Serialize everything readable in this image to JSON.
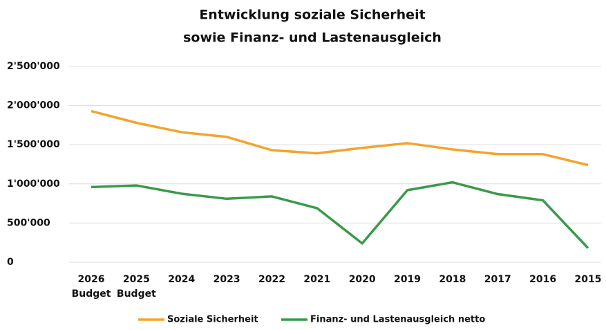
{
  "chart_data": {
    "type": "line",
    "title": [
      "Entwicklung soziale Sicherheit",
      "sowie Finanz- und Lastenausgleich"
    ],
    "categories": [
      "2026 Budget",
      "2025 Budget",
      "2024",
      "2023",
      "2022",
      "2021",
      "2020",
      "2019",
      "2018",
      "2017",
      "2016",
      "2015"
    ],
    "series": [
      {
        "name": "Soziale Sicherheit",
        "color": "#f2a52b",
        "values": [
          1930000,
          1780000,
          1660000,
          1600000,
          1430000,
          1390000,
          1460000,
          1520000,
          1440000,
          1380000,
          1380000,
          1240000
        ]
      },
      {
        "name": "Finanz- und Lastenausgleich netto",
        "color": "#3a9a48",
        "values": [
          960000,
          980000,
          875000,
          810000,
          840000,
          690000,
          240000,
          920000,
          1020000,
          870000,
          790000,
          180000
        ]
      }
    ],
    "ylim": [
      0,
      2500000
    ],
    "yticks": [
      0,
      {
        "value": 500000,
        "label": "500'000"
      },
      {
        "value": 1000000,
        "label": "1'000'000"
      },
      {
        "value": 1500000,
        "label": "1'500'000"
      },
      {
        "value": 2000000,
        "label": "2'000'000"
      },
      {
        "value": 2500000,
        "label": "2'500'000"
      }
    ],
    "grid": true,
    "legend": "bottom"
  }
}
